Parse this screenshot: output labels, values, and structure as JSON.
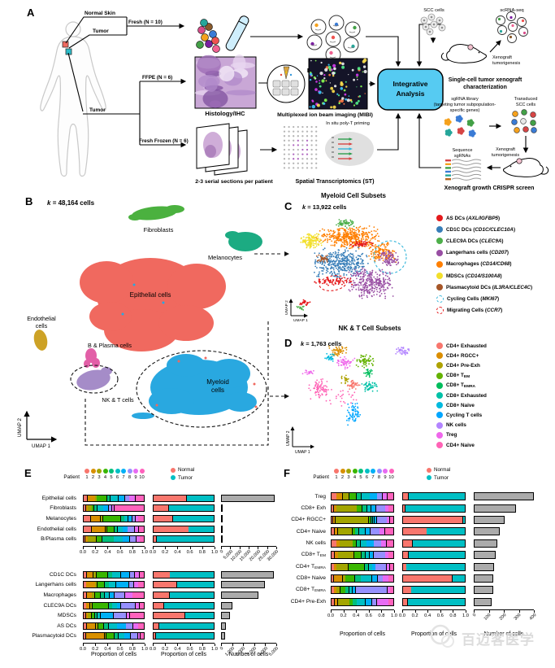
{
  "patient_colors": [
    "#F8766D",
    "#D89000",
    "#A3A500",
    "#39B600",
    "#00BF7D",
    "#00BFC4",
    "#00B0F6",
    "#9590FF",
    "#E76BF3",
    "#FF62BC"
  ],
  "nt": {
    "normal": {
      "label": "Normal",
      "color": "#F8766D"
    },
    "tumor": {
      "label": "Tumor",
      "color": "#00BFC4"
    }
  },
  "panelA": {
    "letter": "A",
    "normal_skin": "Normal Skin",
    "tumor_top": "Tumor",
    "fresh": "Fresh (N = 10)",
    "tumor_bottom": "Tumor",
    "ffpe": "FFPE (N = 6)",
    "fresh_frozen": "Fresh Frozen (N = 6)",
    "dissociation": "Dissociation",
    "droplet": "Droplet scRNA-seq",
    "histology": "Histology/IHC",
    "mibi": "Multiplexed ion beam imaging (MIBI)",
    "serial": "2-3 serial sections per patient",
    "in_situ": "In situ poly-T priming",
    "spatial": "Spatial Transcriptomics (ST)",
    "integrative_1": "Integrative",
    "integrative_2": "Analysis",
    "integrative_color": "#56cbf2",
    "scc_cells": "SCC cells",
    "scrna": "scRNA-seq",
    "xeno_tum_1": "Xenograft",
    "xeno_tum_2": "tumorigenesis",
    "single_cell_1": "Single-cell tumor xenograft",
    "single_cell_2": "characterization",
    "sgrna_1": "sgRNA library",
    "sgrna_2": "(targeting tumor subpopulation-",
    "sgrna_3": "specific genes)",
    "transduced_1": "Transduced",
    "transduced_2": "SCC cells",
    "seq_1": "Sequence",
    "seq_2": "sgRNAs",
    "xeno_tum2_1": "Xenograft",
    "xeno_tum2_2": "tumorigenesis",
    "crispr": "Xenograft growth CRISPR screen"
  },
  "panelB": {
    "letter": "B",
    "k_var": "k",
    "k_rest": "= 48,164 cells",
    "axis_x": "UMAP 1",
    "axis_y": "UMAP 2",
    "clusters": {
      "fibroblasts": {
        "label": "Fibroblasts",
        "color": "#4bb13f"
      },
      "melanocytes": {
        "label": "Melanocytes",
        "color": "#1cab82"
      },
      "epithelial": {
        "label": "Epithelial cells",
        "color": "#f0695f"
      },
      "endothelial": {
        "label_1": "Endothelial",
        "label_2": "cells",
        "color": "#cda226"
      },
      "b_plasma": {
        "label": "B & Plasma cells",
        "color": "#e25fa7"
      },
      "nkt": {
        "label": "NK & T cells",
        "color": "#a58cc8"
      },
      "myeloid": {
        "label_1": "Myeloid",
        "label_2": "cells",
        "color": "#29a8e0"
      }
    }
  },
  "panelC": {
    "letter": "C",
    "title": "Myeloid Cell Subsets",
    "k_var": "k",
    "k_rest": "= 13,922 cells",
    "axis_x": "UMAP 1",
    "axis_y": "UMAP 2",
    "legend": [
      {
        "label": "AS DCs",
        "gene": "AXL/IGFBP5",
        "color": "#E41A1C"
      },
      {
        "label": "CD1C DCs",
        "gene": "CD1C/CLEC10A",
        "color": "#377EB8"
      },
      {
        "label": "CLEC9A DCs",
        "gene": "CLEC9A",
        "color": "#4DAF4A"
      },
      {
        "label": "Langerhans cells",
        "gene": "CD207",
        "color": "#984EA3"
      },
      {
        "label": "Macrophages",
        "gene": "CD14/CD68",
        "color": "#FF7F00"
      },
      {
        "label": "MDSCs",
        "gene": "CD14/S100A8",
        "color": "#F2DF2B"
      },
      {
        "label": "Plasmacytoid DCs",
        "gene": "IL3RA/CLEC4C",
        "color": "#A65628"
      },
      {
        "label": "Cycling Cells",
        "gene": "MKI67",
        "color": "#35b6da",
        "dashed": true
      },
      {
        "label": "Migrating Cells",
        "gene": "CCR7",
        "color": "#E41A1C",
        "dashed": true
      }
    ]
  },
  "panelD": {
    "letter": "D",
    "title": "NK & T Cell Subsets",
    "k_var": "k",
    "k_rest": "= 1,763 cells",
    "axis_x": "UMAP 1",
    "axis_y": "UMAP 2",
    "legend": [
      {
        "label": "CD4+ Exhausted",
        "color": "#F8766D"
      },
      {
        "label": "CD4+ RGCC+",
        "color": "#DB8E00"
      },
      {
        "label": "CD4+ Pre-Exh",
        "color": "#AEA200"
      },
      {
        "label": "CD8+ T",
        "sub": "EM",
        "color": "#64B200"
      },
      {
        "label": "CD8+ T",
        "sub": "EMRA",
        "color": "#00BD5C"
      },
      {
        "label": "CD8+ Exhausted",
        "color": "#00C1A7"
      },
      {
        "label": "CD8+ Naive",
        "color": "#00BADE"
      },
      {
        "label": "Cycling T cells",
        "color": "#00A6FF"
      },
      {
        "label": "NK cells",
        "color": "#B385FF"
      },
      {
        "label": "Treg",
        "color": "#EF67EB"
      },
      {
        "label": "CD4+ Naive",
        "color": "#FF63B6"
      }
    ]
  },
  "panelE": {
    "letter": "E",
    "patient_label": "Patient",
    "patient_numbers": [
      "1",
      "2",
      "3",
      "4",
      "5",
      "6",
      "7",
      "8",
      "9",
      "10"
    ],
    "prop_ticks": [
      "0.0",
      "0.2",
      "0.4",
      "0.6",
      "0.8",
      "1.0"
    ],
    "xlabel_prop": "Proportion of cells",
    "xlabel_count": "Number of cells",
    "groups": [
      {
        "count_ticks": [
          "0",
          "5,000",
          "10,000",
          "15,000",
          "20,000",
          "25,000",
          "30,000"
        ],
        "count_max": 30000,
        "rows": [
          {
            "label": "Epithelial cells",
            "p": [
              0.06,
              0.13,
              0.02,
              0.17,
              0.05,
              0.14,
              0.11,
              0.07,
              0.1,
              0.15
            ],
            "normal": 0.55,
            "count": 29000
          },
          {
            "label": "Fibroblasts",
            "p": [
              0.03,
              0.03,
              0.06,
              0.03,
              0.05,
              0.1,
              0.08,
              0.05,
              0.04,
              0.53
            ],
            "normal": 0.25,
            "count": 1100
          },
          {
            "label": "Melanocytes",
            "p": [
              0.12,
              0.17,
              0.03,
              0.32,
              0.05,
              0.06,
              0.06,
              0.05,
              0.04,
              0.1
            ],
            "normal": 0.32,
            "count": 900
          },
          {
            "label": "Endothelial cells",
            "p": [
              0.14,
              0.24,
              0.02,
              0.12,
              0.05,
              0.08,
              0.08,
              0.12,
              0.06,
              0.09
            ],
            "normal": 0.58,
            "count": 650
          },
          {
            "label": "B/Plasma cells",
            "p": [
              0.02,
              0.04,
              0.14,
              0.1,
              0.2,
              0.15,
              0.12,
              0.1,
              0.06,
              0.07
            ],
            "normal": 0.04,
            "count": 500
          }
        ]
      },
      {
        "count_ticks": [
          "0",
          "1,000",
          "2,000",
          "3,000",
          "4,000",
          "5,000"
        ],
        "count_max": 5000,
        "rows": [
          {
            "label": "CD1C DCs",
            "p": [
              0.05,
              0.1,
              0.05,
              0.2,
              0.07,
              0.15,
              0.15,
              0.08,
              0.07,
              0.08
            ],
            "normal": 0.27,
            "count": 4800
          },
          {
            "label": "Langerhans cells",
            "p": [
              0.04,
              0.15,
              0.03,
              0.12,
              0.07,
              0.12,
              0.22,
              0.08,
              0.07,
              0.1
            ],
            "normal": 0.38,
            "count": 4000
          },
          {
            "label": "Macrophages",
            "p": [
              0.05,
              0.08,
              0.04,
              0.1,
              0.06,
              0.08,
              0.08,
              0.18,
              0.13,
              0.2
            ],
            "normal": 0.26,
            "count": 3400
          },
          {
            "label": "CLEC9A DCs",
            "p": [
              0.04,
              0.06,
              0.03,
              0.28,
              0.06,
              0.08,
              0.06,
              0.25,
              0.06,
              0.08
            ],
            "normal": 0.17,
            "count": 1000
          },
          {
            "label": "MDSCs",
            "p": [
              0.03,
              0.03,
              0.05,
              0.05,
              0.04,
              0.05,
              0.22,
              0.23,
              0.05,
              0.25
            ],
            "normal": 0.52,
            "count": 800
          },
          {
            "label": "AS DCs",
            "p": [
              0.05,
              0.15,
              0.03,
              0.1,
              0.07,
              0.15,
              0.15,
              0.12,
              0.08,
              0.1
            ],
            "normal": 0.08,
            "count": 420
          },
          {
            "label": "Plasmacytoid DCs",
            "p": [
              0.03,
              0.33,
              0.02,
              0.14,
              0.06,
              0.1,
              0.1,
              0.12,
              0.04,
              0.06
            ],
            "normal": 0.03,
            "count": 360
          }
        ]
      }
    ]
  },
  "panelF": {
    "letter": "F",
    "patient_label": "Patient",
    "patient_numbers": [
      "1",
      "2",
      "3",
      "4",
      "5",
      "6",
      "7",
      "8",
      "9",
      "10"
    ],
    "prop_ticks": [
      "0.0",
      "0.2",
      "0.4",
      "0.6",
      "0.8",
      "1.0"
    ],
    "count_ticks": [
      "0",
      "100",
      "200",
      "300",
      "400"
    ],
    "count_max": 400,
    "xlabel_prop": "Proportion of cells",
    "xlabel_count": "Number of cells",
    "rows": [
      {
        "label": "Treg",
        "p": [
          0.08,
          0.1,
          0.1,
          0.12,
          0.08,
          0.14,
          0.12,
          0.08,
          0.08,
          0.1
        ],
        "normal": 0.08,
        "count": 400
      },
      {
        "label": "CD8+ Exh",
        "p": [
          0.03,
          0.04,
          0.35,
          0.08,
          0.08,
          0.06,
          0.08,
          0.15,
          0.05,
          0.08
        ],
        "normal": 0.03,
        "count": 280
      },
      {
        "label": "CD4+ RGCC+",
        "p": [
          0.02,
          0.03,
          0.58,
          0.03,
          0.02,
          0.02,
          0.03,
          0.17,
          0.04,
          0.06
        ],
        "normal": 0.97,
        "count": 205
      },
      {
        "label": "CD4+ Naive",
        "p": [
          0.05,
          0.04,
          0.25,
          0.04,
          0.06,
          0.1,
          0.08,
          0.15,
          0.08,
          0.15
        ],
        "normal": 0.38,
        "count": 175
      },
      {
        "label": "NK cells",
        "p": [
          0.08,
          0.05,
          0.22,
          0.05,
          0.06,
          0.1,
          0.12,
          0.12,
          0.08,
          0.12
        ],
        "normal": 0.15,
        "count": 155
      },
      {
        "label": "CD8+ T",
        "sub": "EM",
        "p": [
          0.05,
          0.05,
          0.27,
          0.12,
          0.06,
          0.06,
          0.06,
          0.2,
          0.05,
          0.08
        ],
        "normal": 0.08,
        "count": 145
      },
      {
        "label": "CD4+ T",
        "sub": "EMRA",
        "p": [
          0.04,
          0.03,
          0.2,
          0.28,
          0.06,
          0.05,
          0.05,
          0.18,
          0.05,
          0.06
        ],
        "normal": 0.05,
        "count": 135
      },
      {
        "label": "CD8+ Naive",
        "p": [
          0.03,
          0.15,
          0.04,
          0.15,
          0.1,
          0.18,
          0.1,
          0.08,
          0.09,
          0.08
        ],
        "normal": 0.8,
        "count": 130
      },
      {
        "label": "CD8+ T",
        "sub": "EMRA",
        "p": [
          0.04,
          0.03,
          0.06,
          0.08,
          0.05,
          0.05,
          0.05,
          0.55,
          0.04,
          0.05
        ],
        "normal": 0.13,
        "count": 130
      },
      {
        "label": "CD4+ Pre-Exh",
        "p": [
          0.05,
          0.04,
          0.2,
          0.05,
          0.06,
          0.14,
          0.1,
          0.08,
          0.2,
          0.08
        ],
        "normal": 0.07,
        "count": 120
      }
    ]
  },
  "watermark": {
    "text": "百迈客医学"
  }
}
